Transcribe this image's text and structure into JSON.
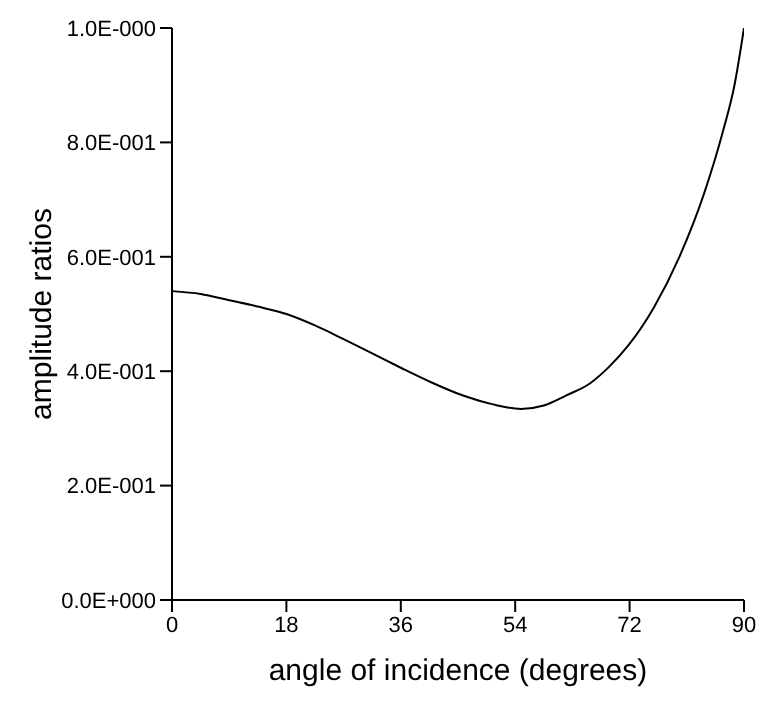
{
  "chart_data": {
    "type": "line",
    "xlabel": "angle of incidence (degrees)",
    "ylabel": "amplitude ratios",
    "x": [
      0,
      4.5,
      9,
      13.5,
      18,
      22.5,
      27,
      31.5,
      36,
      40.5,
      45.9,
      50.5,
      54.9,
      58.5,
      61.9,
      65.8,
      68.8,
      71.8,
      75.8,
      79.8,
      83.7,
      86.7,
      88.5,
      90
    ],
    "series": [
      {
        "color": "#000000",
        "values": [
          0.54,
          0.535,
          0.524,
          0.513,
          0.5,
          0.48,
          0.456,
          0.431,
          0.406,
          0.382,
          0.357,
          0.342,
          0.334,
          0.34,
          0.357,
          0.379,
          0.408,
          0.445,
          0.511,
          0.599,
          0.71,
          0.82,
          0.9,
          1.0
        ]
      }
    ],
    "xlim": [
      0,
      90
    ],
    "xticks": [
      0,
      18,
      36,
      54,
      72,
      90
    ],
    "ylim": [
      0,
      1
    ],
    "yticks": [
      {
        "value": 0,
        "label": "0.0E+000"
      },
      {
        "value": 0.2,
        "label": "2.0E-001"
      },
      {
        "value": 0.4,
        "label": "4.0E-001"
      },
      {
        "value": 0.6,
        "label": "6.0E-001"
      },
      {
        "value": 0.8,
        "label": "8.0E-001"
      },
      {
        "value": 1,
        "label": "1.0E-000"
      }
    ],
    "grid": false,
    "legend": false,
    "marker": "none",
    "line_style": "solid"
  }
}
